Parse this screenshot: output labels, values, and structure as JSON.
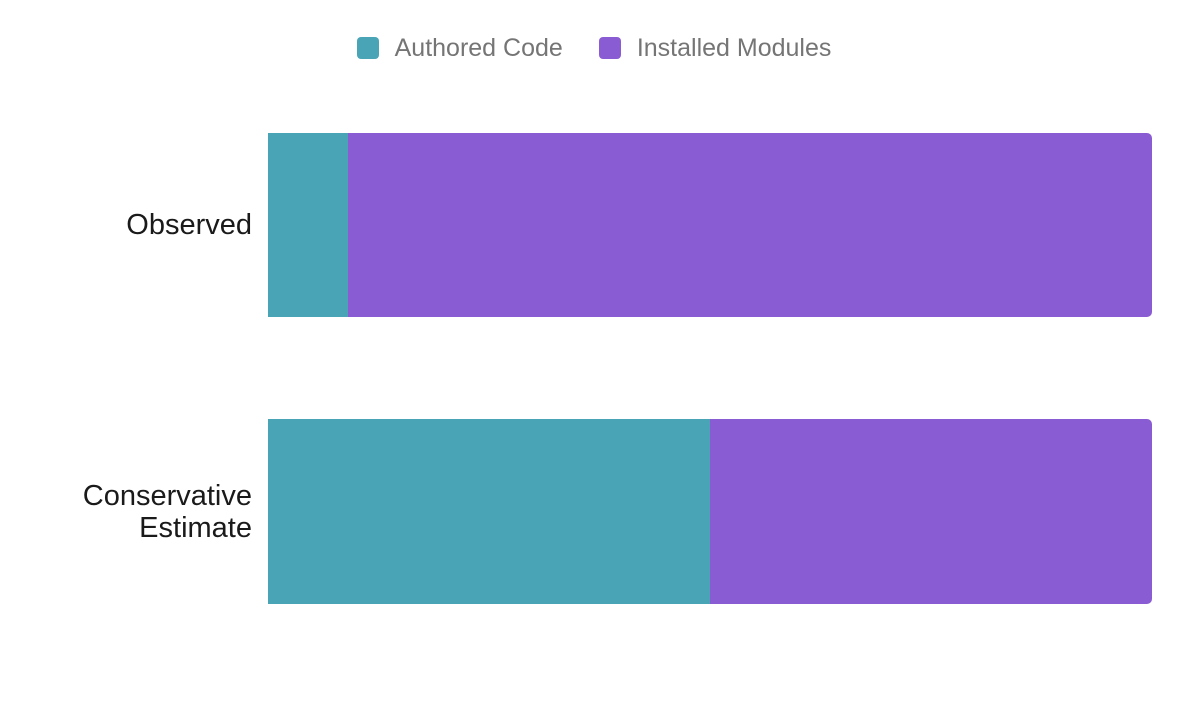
{
  "legend": {
    "items": [
      {
        "label": "Authored Code",
        "color": "#49A5B6"
      },
      {
        "label": "Installed Modules",
        "color": "#8A5CD4"
      }
    ]
  },
  "rows": [
    {
      "label": "Observed"
    },
    {
      "label": "Conservative Estimate"
    }
  ],
  "chart_data": {
    "type": "bar",
    "orientation": "horizontal",
    "stacked": true,
    "normalized_percent": true,
    "categories": [
      "Observed",
      "Conservative Estimate"
    ],
    "series": [
      {
        "name": "Authored Code",
        "color": "#49A5B6",
        "values": [
          9,
          50
        ]
      },
      {
        "name": "Installed Modules",
        "color": "#8A5CD4",
        "values": [
          91,
          50
        ]
      }
    ],
    "title": "",
    "xlabel": "",
    "ylabel": "",
    "xlim": [
      0,
      100
    ],
    "grid": false,
    "axes_visible": false,
    "data_labels_visible": false,
    "legend_position": "top-center",
    "text_colors": {
      "legend": "#757575",
      "category_labels": "#1a1a1a"
    }
  }
}
